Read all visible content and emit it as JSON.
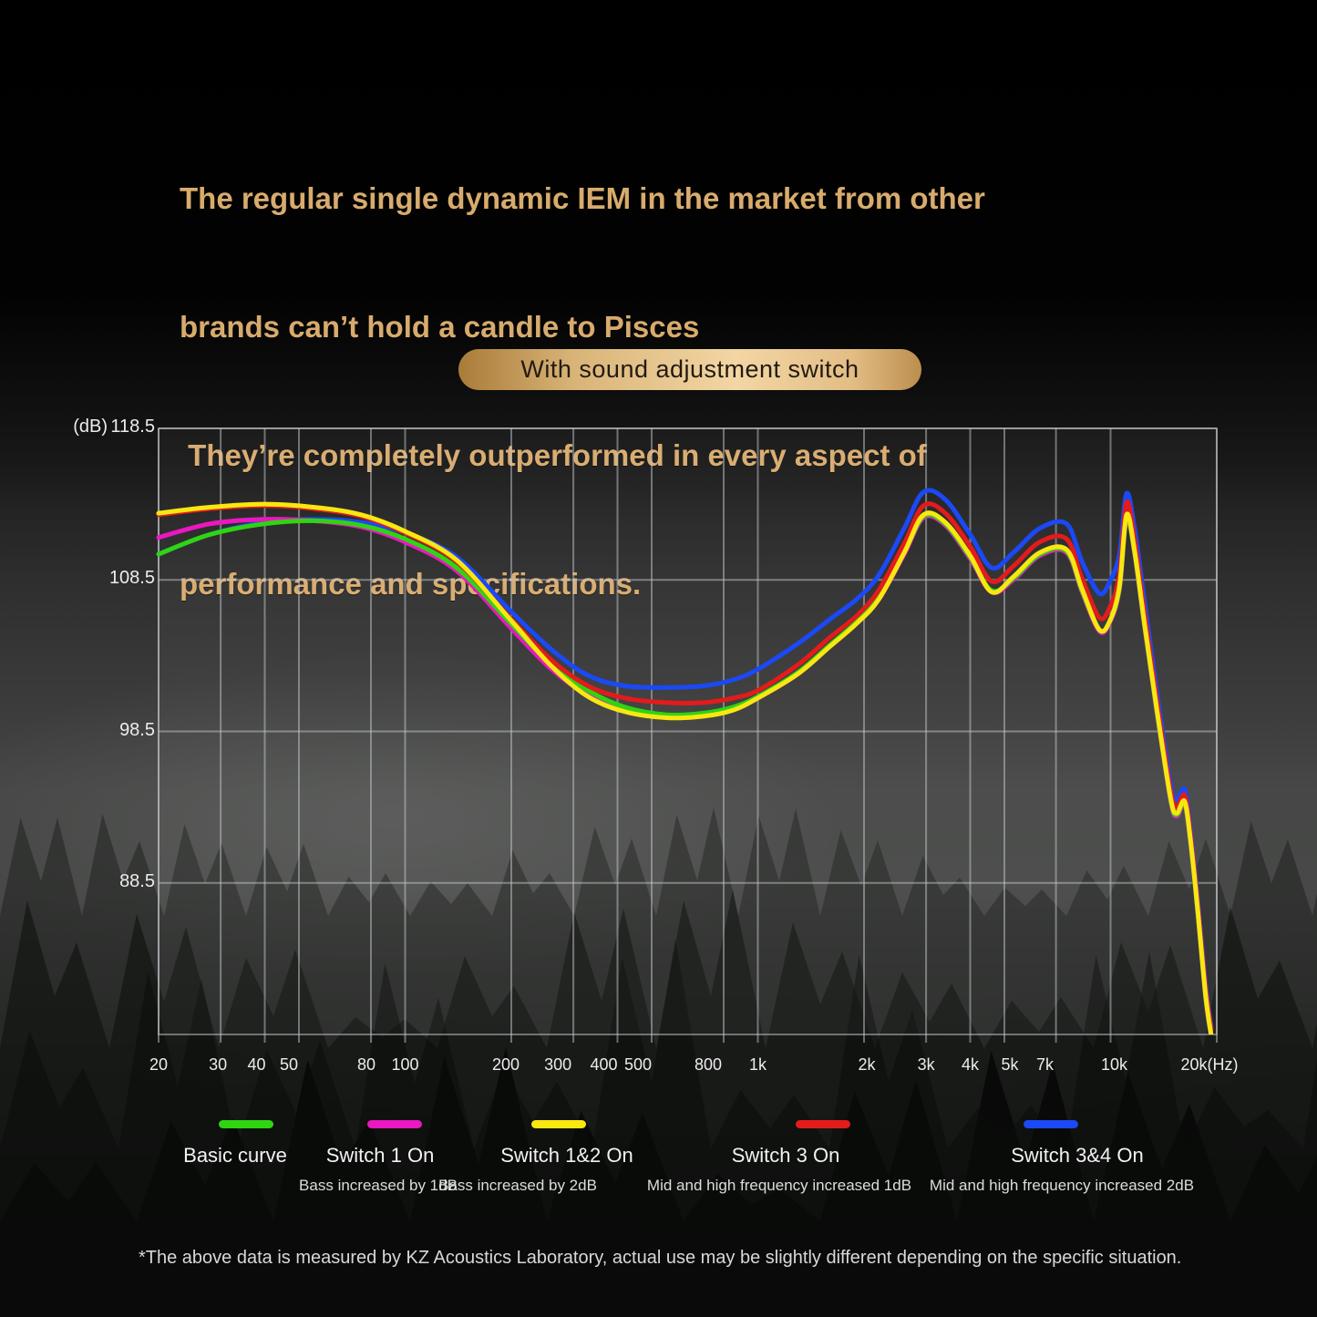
{
  "title": {
    "lines": [
      "The regular single dynamic IEM in the market from other",
      "brands can’t hold a candle to Pisces",
      " They’re completely outperformed in every aspect of",
      "performance and specifications."
    ],
    "color": "#d8ab6d"
  },
  "badge": {
    "label": "With sound adjustment switch"
  },
  "chart_data": {
    "type": "line",
    "x_axis": {
      "unit": "(Hz)",
      "scale": "log",
      "range_hz": [
        20,
        20000
      ],
      "ticks": [
        {
          "f": 20,
          "label": "20",
          "dx": 0
        },
        {
          "f": 30,
          "label": "30",
          "dx": -3
        },
        {
          "f": 40,
          "label": "40",
          "dx": -9
        },
        {
          "f": 50,
          "label": "50",
          "dx": -11
        },
        {
          "f": 80,
          "label": "80",
          "dx": -5
        },
        {
          "f": 100,
          "label": "100",
          "dx": 0
        },
        {
          "f": 200,
          "label": "200",
          "dx": -6
        },
        {
          "f": 300,
          "label": "300",
          "dx": -17
        },
        {
          "f": 400,
          "label": "400",
          "dx": -15
        },
        {
          "f": 500,
          "label": "500",
          "dx": -15
        },
        {
          "f": 800,
          "label": "800",
          "dx": -17
        },
        {
          "f": 1000,
          "label": "1k",
          "dx": 0
        },
        {
          "f": 2000,
          "label": "2k",
          "dx": 3
        },
        {
          "f": 3000,
          "label": "3k",
          "dx": 0
        },
        {
          "f": 4000,
          "label": "4k",
          "dx": 0
        },
        {
          "f": 5000,
          "label": "5k",
          "dx": 6
        },
        {
          "f": 7000,
          "label": "7k",
          "dx": -12
        },
        {
          "f": 10000,
          "label": "10k",
          "dx": 4
        },
        {
          "f": 20000,
          "label": "20k(Hz)",
          "dx": -8
        }
      ]
    },
    "y_axis": {
      "unit": "(dB)",
      "ticks": [
        118.5,
        108.5,
        98.5,
        88.5
      ],
      "range_db": [
        78.5,
        118.5
      ]
    },
    "grid": {
      "color": "rgba(195,200,205,0.5)",
      "plot_fill": "rgba(255,255,255,0.035)"
    },
    "series": [
      {
        "name": "Basic curve",
        "color": "#2fd412",
        "z": 2,
        "points_hz_db": [
          [
            20,
            110.2
          ],
          [
            28,
            111.5
          ],
          [
            40,
            112.2
          ],
          [
            55,
            112.4
          ],
          [
            75,
            112.1
          ],
          [
            100,
            111.2
          ],
          [
            140,
            109.3
          ],
          [
            200,
            105.6
          ],
          [
            260,
            102.9
          ],
          [
            330,
            101.2
          ],
          [
            420,
            100.1
          ],
          [
            550,
            99.6
          ],
          [
            700,
            99.7
          ],
          [
            850,
            100.1
          ],
          [
            1000,
            100.8
          ],
          [
            1300,
            102.4
          ],
          [
            1600,
            104.2
          ],
          [
            1900,
            105.7
          ],
          [
            2200,
            107.3
          ],
          [
            2600,
            110.3
          ],
          [
            2950,
            112.7
          ],
          [
            3400,
            112.2
          ],
          [
            4000,
            110.0
          ],
          [
            4600,
            107.8
          ],
          [
            5300,
            108.6
          ],
          [
            6300,
            110.2
          ],
          [
            7500,
            110.4
          ],
          [
            8300,
            107.8
          ],
          [
            9300,
            105.2
          ],
          [
            10000,
            105.9
          ],
          [
            10600,
            108.0
          ],
          [
            11100,
            112.6
          ],
          [
            11700,
            110.3
          ],
          [
            12500,
            105.4
          ],
          [
            13500,
            100.0
          ],
          [
            14800,
            94.0
          ],
          [
            15400,
            93.0
          ],
          [
            16200,
            93.8
          ],
          [
            16800,
            91.5
          ],
          [
            17600,
            87.0
          ],
          [
            18600,
            81.0
          ],
          [
            19300,
            78.4
          ]
        ]
      },
      {
        "name": "Switch 1 On",
        "color": "#ea18c0",
        "z": 1,
        "points_hz_db": [
          [
            20,
            111.3
          ],
          [
            28,
            112.2
          ],
          [
            40,
            112.5
          ],
          [
            55,
            112.4
          ],
          [
            75,
            112.0
          ],
          [
            100,
            111.0
          ],
          [
            140,
            109.1
          ],
          [
            200,
            105.3
          ],
          [
            260,
            102.6
          ],
          [
            330,
            100.9
          ],
          [
            420,
            99.9
          ],
          [
            550,
            99.5
          ],
          [
            700,
            99.6
          ],
          [
            850,
            100.0
          ],
          [
            1000,
            100.7
          ],
          [
            1300,
            102.3
          ],
          [
            1600,
            104.1
          ],
          [
            1900,
            105.6
          ],
          [
            2200,
            107.2
          ],
          [
            2600,
            110.2
          ],
          [
            2950,
            112.6
          ],
          [
            3400,
            112.1
          ],
          [
            4000,
            109.9
          ],
          [
            4600,
            107.7
          ],
          [
            5300,
            108.5
          ],
          [
            6300,
            110.1
          ],
          [
            7500,
            110.3
          ],
          [
            8300,
            107.7
          ],
          [
            9300,
            105.1
          ],
          [
            10000,
            105.8
          ],
          [
            10600,
            107.9
          ],
          [
            11100,
            112.5
          ],
          [
            11700,
            110.2
          ],
          [
            12500,
            105.3
          ],
          [
            13500,
            99.9
          ],
          [
            14800,
            93.9
          ],
          [
            15400,
            92.9
          ],
          [
            16200,
            93.7
          ],
          [
            16800,
            91.4
          ],
          [
            17600,
            86.9
          ],
          [
            18600,
            80.9
          ],
          [
            19300,
            78.3
          ]
        ]
      },
      {
        "name": "Switch 1&2 On",
        "color": "#f8e711",
        "z": 4,
        "points_hz_db": [
          [
            20,
            112.9
          ],
          [
            28,
            113.3
          ],
          [
            40,
            113.5
          ],
          [
            55,
            113.3
          ],
          [
            75,
            112.8
          ],
          [
            100,
            111.7
          ],
          [
            140,
            109.8
          ],
          [
            200,
            105.8
          ],
          [
            260,
            102.8
          ],
          [
            330,
            100.8
          ],
          [
            420,
            99.8
          ],
          [
            550,
            99.4
          ],
          [
            700,
            99.5
          ],
          [
            850,
            99.9
          ],
          [
            1000,
            100.7
          ],
          [
            1300,
            102.3
          ],
          [
            1600,
            104.1
          ],
          [
            1900,
            105.6
          ],
          [
            2200,
            107.2
          ],
          [
            2600,
            110.3
          ],
          [
            2950,
            112.8
          ],
          [
            3400,
            112.3
          ],
          [
            4000,
            110.1
          ],
          [
            4600,
            107.7
          ],
          [
            5300,
            108.7
          ],
          [
            6300,
            110.3
          ],
          [
            7500,
            110.5
          ],
          [
            8300,
            107.9
          ],
          [
            9300,
            105.2
          ],
          [
            10000,
            105.9
          ],
          [
            10600,
            108.1
          ],
          [
            11100,
            112.8
          ],
          [
            11700,
            110.4
          ],
          [
            12500,
            105.5
          ],
          [
            13500,
            100.1
          ],
          [
            14800,
            94.1
          ],
          [
            15400,
            93.1
          ],
          [
            16200,
            93.9
          ],
          [
            16800,
            91.6
          ],
          [
            17600,
            87.1
          ],
          [
            18600,
            81.1
          ],
          [
            19300,
            78.4
          ]
        ]
      },
      {
        "name": "Switch 3 On",
        "color": "#e31b1c",
        "z": 3,
        "points_hz_db": [
          [
            20,
            112.8
          ],
          [
            28,
            113.2
          ],
          [
            40,
            113.4
          ],
          [
            55,
            113.2
          ],
          [
            75,
            112.7
          ],
          [
            100,
            111.6
          ],
          [
            140,
            109.7
          ],
          [
            200,
            105.9
          ],
          [
            260,
            103.2
          ],
          [
            330,
            101.5
          ],
          [
            420,
            100.7
          ],
          [
            550,
            100.4
          ],
          [
            700,
            100.4
          ],
          [
            850,
            100.7
          ],
          [
            1000,
            101.2
          ],
          [
            1300,
            102.9
          ],
          [
            1600,
            104.7
          ],
          [
            1900,
            106.1
          ],
          [
            2200,
            107.8
          ],
          [
            2600,
            110.9
          ],
          [
            2950,
            113.4
          ],
          [
            3400,
            112.9
          ],
          [
            4000,
            110.7
          ],
          [
            4600,
            108.4
          ],
          [
            5300,
            109.4
          ],
          [
            6300,
            111.0
          ],
          [
            7500,
            111.2
          ],
          [
            8300,
            108.6
          ],
          [
            9300,
            106.0
          ],
          [
            10000,
            106.8
          ],
          [
            10600,
            108.9
          ],
          [
            11100,
            113.6
          ],
          [
            11700,
            111.1
          ],
          [
            12500,
            106.2
          ],
          [
            13500,
            100.7
          ],
          [
            14800,
            94.6
          ],
          [
            15400,
            93.5
          ],
          [
            16200,
            94.3
          ],
          [
            16800,
            92.0
          ],
          [
            17600,
            87.5
          ],
          [
            18600,
            81.5
          ],
          [
            19300,
            78.8
          ]
        ]
      },
      {
        "name": "Switch 3&4 On",
        "color": "#1b49f5",
        "z": 0,
        "points_hz_db": [
          [
            20,
            110.2
          ],
          [
            28,
            111.5
          ],
          [
            40,
            112.3
          ],
          [
            55,
            112.5
          ],
          [
            75,
            112.3
          ],
          [
            100,
            111.6
          ],
          [
            140,
            110.0
          ],
          [
            200,
            106.4
          ],
          [
            260,
            103.9
          ],
          [
            330,
            102.2
          ],
          [
            420,
            101.5
          ],
          [
            550,
            101.4
          ],
          [
            700,
            101.5
          ],
          [
            850,
            101.9
          ],
          [
            1000,
            102.6
          ],
          [
            1300,
            104.3
          ],
          [
            1600,
            105.9
          ],
          [
            1900,
            107.2
          ],
          [
            2200,
            108.8
          ],
          [
            2600,
            111.9
          ],
          [
            2950,
            114.3
          ],
          [
            3400,
            113.8
          ],
          [
            4000,
            111.5
          ],
          [
            4600,
            109.3
          ],
          [
            5300,
            110.3
          ],
          [
            6300,
            111.9
          ],
          [
            7500,
            112.2
          ],
          [
            8300,
            109.7
          ],
          [
            9300,
            107.6
          ],
          [
            10000,
            108.5
          ],
          [
            10600,
            110.2
          ],
          [
            11100,
            114.2
          ],
          [
            11700,
            111.9
          ],
          [
            12500,
            107.0
          ],
          [
            13500,
            101.3
          ],
          [
            14800,
            95.1
          ],
          [
            15400,
            94.0
          ],
          [
            16200,
            94.7
          ],
          [
            16800,
            92.3
          ],
          [
            17600,
            87.8
          ],
          [
            18600,
            81.8
          ],
          [
            19300,
            79.0
          ]
        ]
      }
    ]
  },
  "legend": {
    "items": [
      {
        "label": "Basic curve",
        "sublabel": "",
        "color": "#2fd412"
      },
      {
        "label": "Switch 1 On",
        "sublabel": "Bass increased by 1dB",
        "color": "#ea18c0"
      },
      {
        "label": "Switch 1&2 On",
        "sublabel": "Bass increased by 2dB",
        "color": "#f8e711"
      },
      {
        "label": "Switch 3 On",
        "sublabel": "Mid and high frequency increased 1dB",
        "color": "#e31b1c"
      },
      {
        "label": "Switch 3&4 On",
        "sublabel": "Mid and high frequency increased 2dB",
        "color": "#1b49f5"
      }
    ]
  },
  "footer": {
    "note": "*The above data is measured by KZ Acoustics Laboratory, actual use may be slightly different depending on the specific situation."
  }
}
